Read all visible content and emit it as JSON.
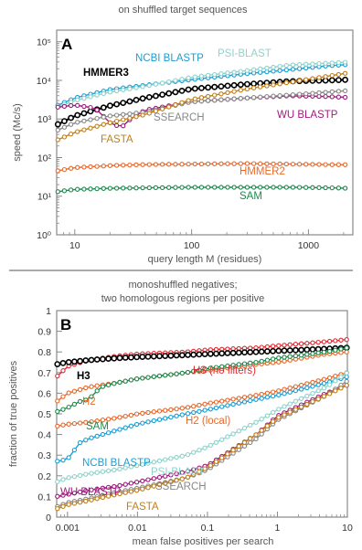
{
  "chart_data": [
    {
      "type": "line",
      "panel_label": "A",
      "title": "on shuffled target sequences",
      "xlabel": "query length M (residues)",
      "ylabel": "speed (Mc/s)",
      "xscale": "log",
      "yscale": "log",
      "xlim": [
        7,
        2400
      ],
      "ylim": [
        1,
        200000
      ],
      "xticks": [
        10,
        100,
        1000
      ],
      "yticks": [
        1,
        10,
        100,
        1000,
        10000,
        100000
      ],
      "ytick_labels": [
        "10⁰",
        "10¹",
        "10²",
        "10³",
        "10⁴",
        "10⁵"
      ],
      "series": [
        {
          "name": "NCBI BLASTP",
          "color": "#1a9fd6",
          "x": [
            7,
            10,
            20,
            40,
            100,
            300,
            700,
            1500,
            2300
          ],
          "y": [
            2200,
            3500,
            5800,
            7500,
            10500,
            15000,
            19000,
            24000,
            26000
          ]
        },
        {
          "name": "PSI-BLAST",
          "color": "#8fd3cc",
          "x": [
            7,
            10,
            20,
            40,
            100,
            300,
            700,
            1500,
            2300
          ],
          "y": [
            2000,
            3000,
            5000,
            7000,
            12000,
            18000,
            25000,
            28000,
            30000
          ]
        },
        {
          "name": "HMMER3",
          "color": "#000000",
          "x": [
            7,
            10,
            20,
            40,
            100,
            300,
            700,
            1500,
            2300
          ],
          "y": [
            700,
            1200,
            2200,
            3500,
            6000,
            8000,
            9500,
            10000,
            10500
          ]
        },
        {
          "name": "WU BLASTP",
          "color": "#a01a7d",
          "x": [
            7,
            10,
            15,
            20,
            25,
            30,
            40,
            100,
            300,
            700,
            1500,
            2300
          ],
          "y": [
            2000,
            2300,
            1900,
            800,
            600,
            1000,
            1700,
            2800,
            3500,
            4000,
            3800,
            3600
          ]
        },
        {
          "name": "SSEARCH",
          "color": "#888888",
          "x": [
            7,
            10,
            20,
            40,
            100,
            300,
            700,
            1500,
            2300
          ],
          "y": [
            500,
            800,
            1200,
            1500,
            2800,
            3500,
            4200,
            5000,
            5500
          ]
        },
        {
          "name": "FASTA",
          "color": "#c17f1a",
          "x": [
            7,
            10,
            20,
            40,
            100,
            300,
            700,
            1500,
            2300
          ],
          "y": [
            280,
            450,
            800,
            1300,
            3200,
            6000,
            9000,
            13000,
            16000
          ]
        },
        {
          "name": "HMMER2",
          "color": "#e8692a",
          "x": [
            7,
            10,
            20,
            40,
            100,
            300,
            700,
            1500,
            2300
          ],
          "y": [
            45,
            55,
            62,
            66,
            68,
            70,
            68,
            66,
            65
          ]
        },
        {
          "name": "SAM",
          "color": "#1e8a4e",
          "x": [
            7,
            10,
            20,
            40,
            100,
            300,
            700,
            1500,
            2300
          ],
          "y": [
            13,
            15,
            16,
            16.5,
            17,
            17,
            17,
            16.5,
            16
          ]
        }
      ]
    },
    {
      "type": "line",
      "panel_label": "B",
      "title": [
        "monoshuffled negatives;",
        "two homologous regions per positive"
      ],
      "xlabel": "mean false positives per search",
      "ylabel": "fraction of true positives",
      "xscale": "log",
      "yscale": "linear",
      "xlim": [
        0.0007,
        10
      ],
      "ylim": [
        0,
        1
      ],
      "xticks": [
        0.001,
        0.01,
        0.1,
        1,
        10
      ],
      "xtick_labels": [
        "0.001",
        "0.01",
        "0.1",
        "1",
        "10"
      ],
      "yticks": [
        0,
        0.1,
        0.2,
        0.3,
        0.4,
        0.5,
        0.6,
        0.7,
        0.8,
        0.9,
        1
      ],
      "ytick_labels": [
        "0",
        "0.1",
        "0.2",
        "0.3",
        "0.4",
        "0.5",
        "0.6",
        "0.7",
        "0.8",
        "0.9",
        "1"
      ],
      "series": [
        {
          "name": "H3 (no filters)",
          "color": "#e02a33",
          "x": [
            0.0007,
            0.001,
            0.002,
            0.005,
            0.01,
            0.05,
            0.1,
            0.5,
            1,
            5,
            10
          ],
          "y": [
            0.68,
            0.73,
            0.76,
            0.78,
            0.79,
            0.8,
            0.81,
            0.82,
            0.83,
            0.85,
            0.86
          ]
        },
        {
          "name": "H3",
          "color": "#000000",
          "x": [
            0.0007,
            0.001,
            0.002,
            0.005,
            0.01,
            0.05,
            0.1,
            0.5,
            1,
            5,
            10
          ],
          "y": [
            0.74,
            0.75,
            0.76,
            0.77,
            0.775,
            0.785,
            0.79,
            0.8,
            0.805,
            0.815,
            0.82
          ]
        },
        {
          "name": "H2",
          "color": "#e8692a",
          "x": [
            0.0007,
            0.001,
            0.002,
            0.005,
            0.01,
            0.05,
            0.1,
            0.5,
            1,
            5,
            10
          ],
          "y": [
            0.56,
            0.6,
            0.63,
            0.65,
            0.67,
            0.7,
            0.71,
            0.74,
            0.75,
            0.79,
            0.8
          ]
        },
        {
          "name": "SAM",
          "color": "#1e8a4e",
          "x": [
            0.0007,
            0.001,
            0.0015,
            0.002,
            0.003,
            0.005,
            0.01,
            0.05,
            0.1,
            0.5,
            1,
            5,
            10
          ],
          "y": [
            0.51,
            0.53,
            0.56,
            0.57,
            0.63,
            0.65,
            0.67,
            0.7,
            0.72,
            0.75,
            0.77,
            0.8,
            0.82
          ]
        },
        {
          "name": "H2 (local)",
          "color": "#e8692a",
          "x": [
            0.0007,
            0.001,
            0.002,
            0.005,
            0.01,
            0.05,
            0.1,
            0.5,
            1,
            5,
            10
          ],
          "y": [
            0.44,
            0.45,
            0.46,
            0.48,
            0.5,
            0.53,
            0.55,
            0.59,
            0.61,
            0.67,
            0.7
          ]
        },
        {
          "name": "NCBI BLASTP",
          "color": "#1a9fd6",
          "x": [
            0.0007,
            0.001,
            0.0015,
            0.002,
            0.005,
            0.01,
            0.05,
            0.1,
            0.5,
            1,
            5,
            10
          ],
          "y": [
            0.27,
            0.28,
            0.36,
            0.38,
            0.42,
            0.45,
            0.5,
            0.52,
            0.57,
            0.59,
            0.65,
            0.68
          ]
        },
        {
          "name": "PSI-BLAST",
          "color": "#8fd3cc",
          "x": [
            0.0007,
            0.001,
            0.002,
            0.005,
            0.01,
            0.05,
            0.1,
            0.5,
            1,
            5,
            10
          ],
          "y": [
            0.17,
            0.19,
            0.21,
            0.23,
            0.25,
            0.3,
            0.34,
            0.46,
            0.52,
            0.63,
            0.7
          ]
        },
        {
          "name": "WU BLASTP",
          "color": "#a01a7d",
          "x": [
            0.0007,
            0.001,
            0.002,
            0.005,
            0.01,
            0.05,
            0.1,
            0.5,
            1,
            5,
            10
          ],
          "y": [
            0.1,
            0.11,
            0.13,
            0.15,
            0.17,
            0.22,
            0.25,
            0.4,
            0.49,
            0.6,
            0.64
          ]
        },
        {
          "name": "SSEARCH",
          "color": "#888888",
          "x": [
            0.0007,
            0.001,
            0.002,
            0.005,
            0.01,
            0.05,
            0.1,
            0.5,
            1,
            5,
            10
          ],
          "y": [
            0.05,
            0.07,
            0.09,
            0.12,
            0.14,
            0.19,
            0.23,
            0.38,
            0.47,
            0.59,
            0.66
          ]
        },
        {
          "name": "FASTA",
          "color": "#c17f1a",
          "x": [
            0.0007,
            0.001,
            0.002,
            0.005,
            0.01,
            0.05,
            0.1,
            0.5,
            1,
            5,
            10
          ],
          "y": [
            0.04,
            0.06,
            0.08,
            0.11,
            0.13,
            0.19,
            0.24,
            0.4,
            0.48,
            0.59,
            0.64
          ]
        }
      ]
    }
  ]
}
